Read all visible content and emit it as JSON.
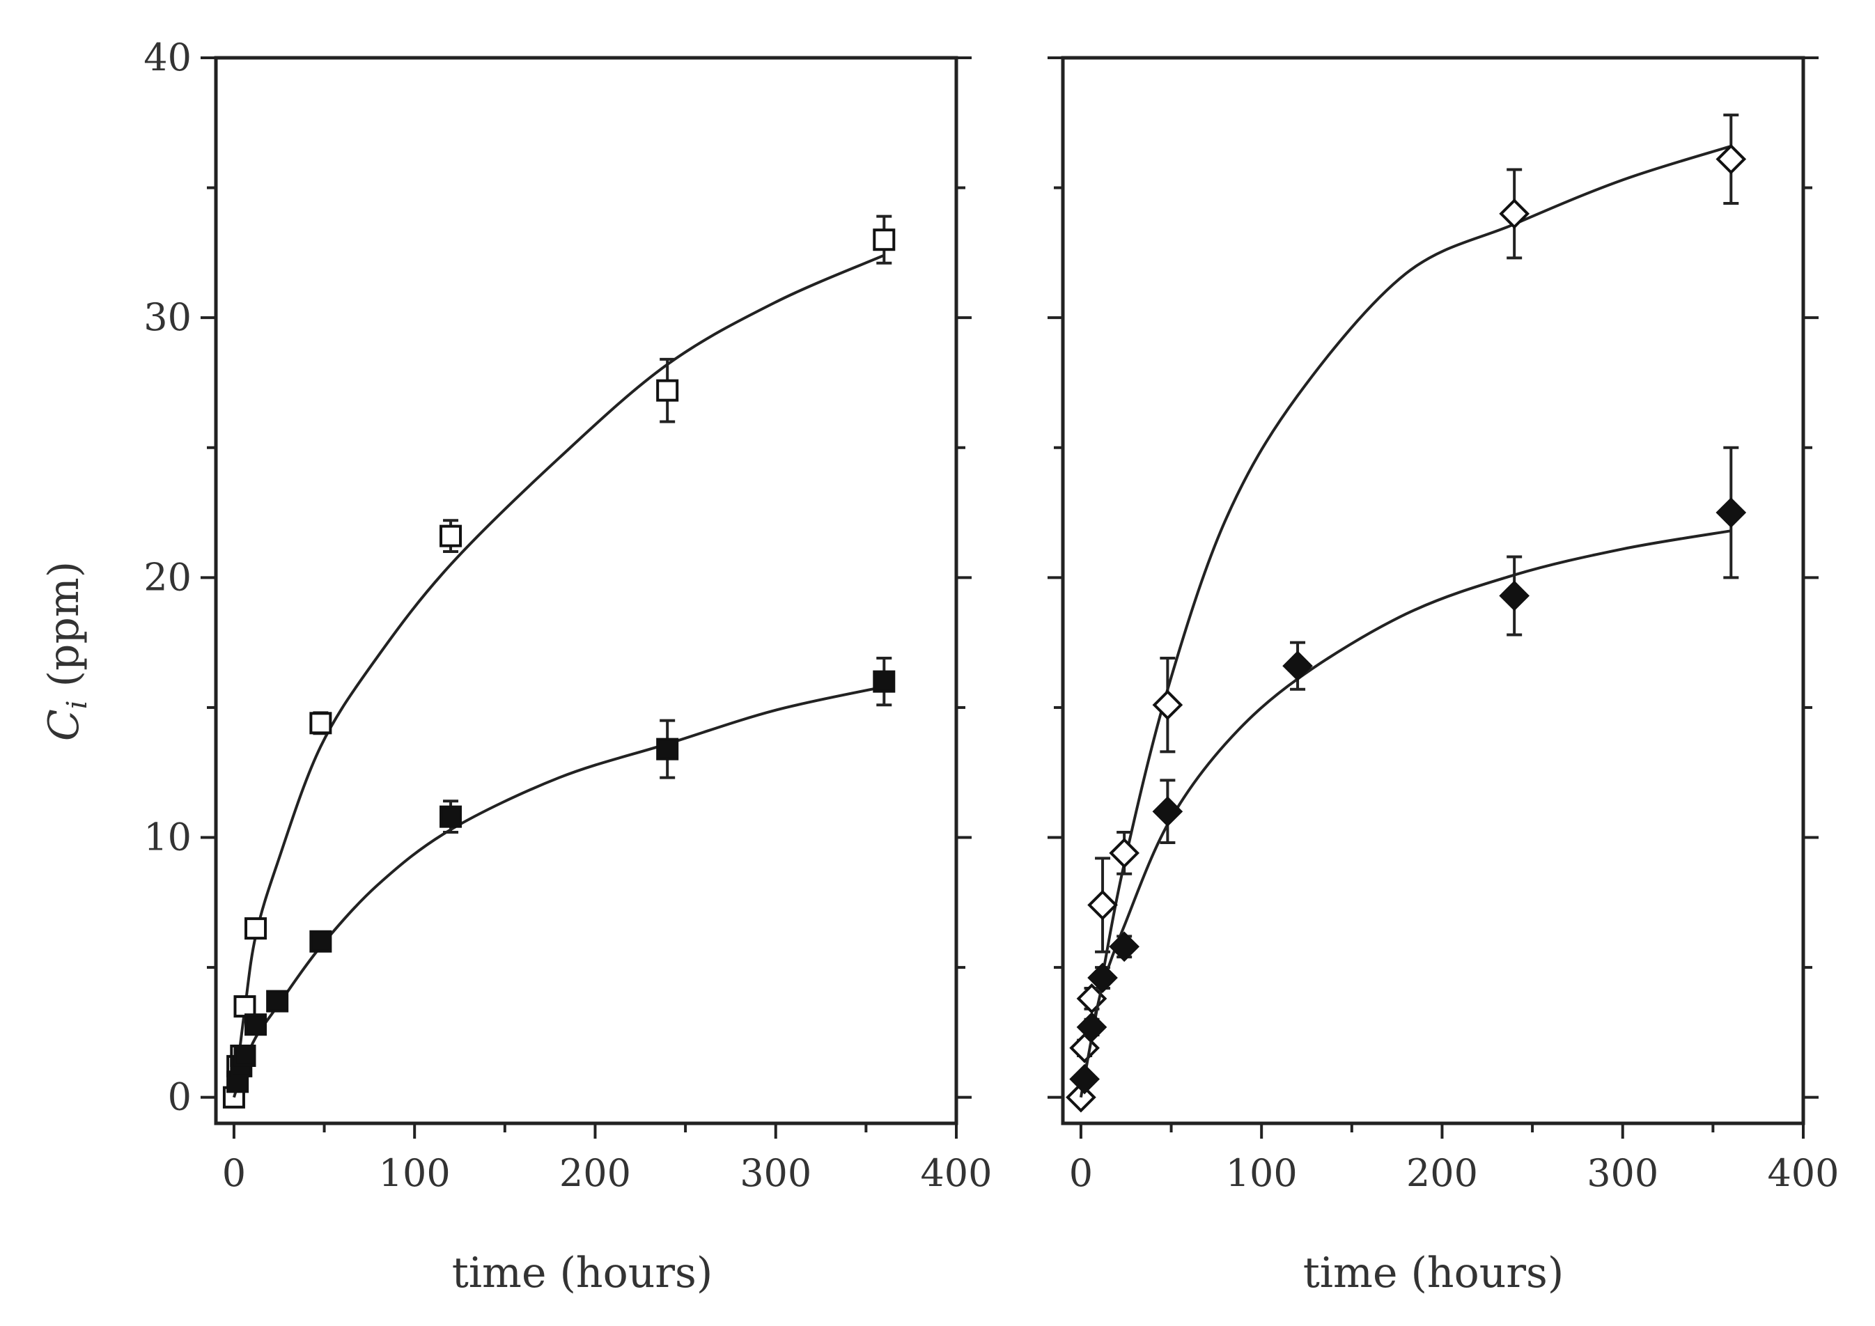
{
  "chart_data": [
    {
      "type": "scatter",
      "panel": "left",
      "xlabel": "time (hours)",
      "ylabel_main": "C",
      "ylabel_sub": "i",
      "ylabel_unit": " (ppm)",
      "xlim": [
        -10,
        400
      ],
      "ylim": [
        -1,
        40
      ],
      "xticks": [
        0,
        100,
        200,
        300,
        400
      ],
      "yticks": [
        0,
        10,
        20,
        30,
        40
      ],
      "grid": false,
      "series": [
        {
          "marker": "square",
          "fill": "open",
          "x": [
            0,
            2,
            4,
            6,
            12,
            48,
            120,
            240,
            360
          ],
          "y": [
            0,
            1.2,
            1.6,
            3.5,
            6.5,
            14.4,
            21.6,
            27.2,
            33.0
          ],
          "err": [
            0.3,
            0.2,
            0.2,
            0.3,
            0.3,
            0.4,
            0.6,
            1.2,
            0.9
          ],
          "fit": [
            [
              0,
              0
            ],
            [
              6,
              3.4
            ],
            [
              12,
              6.2
            ],
            [
              24,
              9.0
            ],
            [
              48,
              13.5
            ],
            [
              80,
              17.0
            ],
            [
              120,
              20.5
            ],
            [
              180,
              24.6
            ],
            [
              240,
              28.2
            ],
            [
              300,
              30.6
            ],
            [
              360,
              32.4
            ]
          ]
        },
        {
          "marker": "square",
          "fill": "filled",
          "x": [
            2,
            4,
            6,
            12,
            24,
            48,
            120,
            240,
            360
          ],
          "y": [
            0.6,
            1.2,
            1.6,
            2.8,
            3.7,
            6.0,
            10.8,
            13.4,
            16.0
          ],
          "err": [
            0.2,
            0.2,
            0.2,
            0.3,
            0.3,
            0.3,
            0.6,
            1.1,
            0.9
          ],
          "fit": [
            [
              0,
              0
            ],
            [
              6,
              1.3
            ],
            [
              12,
              2.3
            ],
            [
              24,
              3.5
            ],
            [
              48,
              5.8
            ],
            [
              80,
              8.2
            ],
            [
              120,
              10.3
            ],
            [
              180,
              12.3
            ],
            [
              240,
              13.6
            ],
            [
              300,
              14.9
            ],
            [
              360,
              15.8
            ]
          ]
        }
      ]
    },
    {
      "type": "scatter",
      "panel": "right",
      "xlabel": "time (hours)",
      "xlim": [
        -10,
        400
      ],
      "ylim": [
        -1,
        40
      ],
      "xticks": [
        0,
        100,
        200,
        300,
        400
      ],
      "yticks": [
        0,
        10,
        20,
        30,
        40
      ],
      "grid": false,
      "series": [
        {
          "marker": "diamond",
          "fill": "open",
          "x": [
            0,
            2,
            6,
            12,
            24,
            48,
            240,
            360
          ],
          "y": [
            0,
            1.9,
            3.8,
            7.4,
            9.4,
            15.1,
            34.0,
            36.1
          ],
          "err": [
            0.2,
            0.3,
            0.4,
            1.8,
            0.8,
            1.8,
            1.7,
            1.7
          ],
          "fit": [
            [
              0,
              0
            ],
            [
              6,
              2.4
            ],
            [
              12,
              4.7
            ],
            [
              24,
              9.0
            ],
            [
              48,
              15.7
            ],
            [
              80,
              22.2
            ],
            [
              120,
              27.0
            ],
            [
              180,
              31.7
            ],
            [
              240,
              33.6
            ],
            [
              300,
              35.3
            ],
            [
              360,
              36.6
            ]
          ]
        },
        {
          "marker": "diamond",
          "fill": "filled",
          "x": [
            2,
            6,
            12,
            24,
            48,
            120,
            240,
            360
          ],
          "y": [
            0.7,
            2.7,
            4.6,
            5.8,
            11.0,
            16.6,
            19.3,
            22.5
          ],
          "err": [
            0.2,
            0.3,
            0.4,
            0.4,
            1.2,
            0.9,
            1.5,
            2.5
          ],
          "fit": [
            [
              0,
              0
            ],
            [
              6,
              2.3
            ],
            [
              12,
              4.3
            ],
            [
              24,
              6.6
            ],
            [
              48,
              10.5
            ],
            [
              80,
              13.6
            ],
            [
              120,
              16.1
            ],
            [
              180,
              18.6
            ],
            [
              240,
              20.1
            ],
            [
              300,
              21.1
            ],
            [
              360,
              21.8
            ]
          ]
        }
      ]
    }
  ]
}
